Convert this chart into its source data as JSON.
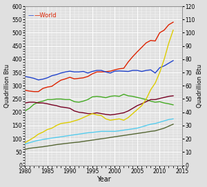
{
  "years": [
    1980,
    1981,
    1982,
    1983,
    1984,
    1985,
    1986,
    1987,
    1988,
    1989,
    1990,
    1991,
    1992,
    1993,
    1994,
    1995,
    1996,
    1997,
    1998,
    1999,
    2000,
    2001,
    2002,
    2003,
    2004,
    2005,
    2006,
    2007,
    2008,
    2009,
    2010,
    2011,
    2012,
    2013
  ],
  "world_left": [
    283,
    280,
    278,
    278,
    290,
    295,
    298,
    310,
    321,
    326,
    332,
    326,
    328,
    330,
    335,
    345,
    352,
    352,
    353,
    355,
    360,
    364,
    366,
    390,
    410,
    428,
    445,
    462,
    471,
    469,
    500,
    510,
    530,
    540
  ],
  "blue_left": [
    335,
    332,
    328,
    322,
    325,
    330,
    338,
    342,
    348,
    352,
    355,
    352,
    352,
    354,
    348,
    354,
    358,
    358,
    352,
    348,
    355,
    356,
    355,
    354,
    358,
    358,
    354,
    358,
    360,
    348,
    368,
    375,
    385,
    395
  ],
  "green_left": [
    205,
    215,
    230,
    238,
    242,
    248,
    248,
    250,
    250,
    248,
    248,
    240,
    238,
    242,
    248,
    258,
    260,
    258,
    255,
    260,
    262,
    260,
    268,
    262,
    260,
    256,
    252,
    248,
    242,
    238,
    240,
    235,
    232,
    228
  ],
  "darkred_left": [
    235,
    238,
    238,
    235,
    235,
    232,
    228,
    225,
    220,
    218,
    215,
    205,
    200,
    198,
    195,
    195,
    198,
    195,
    192,
    190,
    192,
    195,
    198,
    205,
    215,
    225,
    232,
    240,
    248,
    248,
    252,
    256,
    260,
    262
  ],
  "yellow_right": [
    17,
    19,
    21,
    23.5,
    25,
    27,
    28,
    30,
    31.5,
    32,
    32.5,
    33.5,
    34.5,
    36,
    37.5,
    39,
    38,
    37.5,
    35,
    34,
    34.5,
    35,
    34,
    36,
    39,
    42,
    45,
    50,
    57,
    62,
    70,
    80,
    92,
    102
  ],
  "lightblue_right": [
    16,
    17,
    18,
    18.8,
    19.5,
    20,
    20.5,
    21,
    21.5,
    22,
    22.5,
    23,
    23.5,
    24,
    24.5,
    24.8,
    25.2,
    25.6,
    25.6,
    25.6,
    25.6,
    26,
    26.5,
    27,
    27.5,
    28,
    29,
    30,
    31,
    31.5,
    32.5,
    33.5,
    34.5,
    35
  ],
  "darkolive_right": [
    12,
    12.8,
    13.2,
    13.6,
    14,
    14.5,
    15,
    15.6,
    16,
    16.4,
    16.8,
    17.2,
    17.5,
    18,
    18.5,
    19,
    19.5,
    20,
    20.4,
    21,
    21.5,
    22,
    22.5,
    23,
    23.5,
    24,
    24.5,
    25,
    25.6,
    26,
    27,
    28,
    29.5,
    31
  ],
  "left_ylim": [
    0,
    600
  ],
  "right_ylim": [
    0,
    120
  ],
  "xlim": [
    1980,
    2015
  ],
  "xticks": [
    1980,
    1985,
    1990,
    1995,
    2000,
    2005,
    2010,
    2015
  ],
  "left_yticks": [
    0,
    50,
    100,
    150,
    200,
    250,
    300,
    350,
    400,
    450,
    500,
    550,
    600
  ],
  "right_yticks": [
    0,
    10,
    20,
    30,
    40,
    50,
    60,
    70,
    80,
    90,
    100,
    110,
    120
  ],
  "xlabel": "Year",
  "left_ylabel": "Quadrillion Btu",
  "right_ylabel": "Quadrillion Btu",
  "legend_blue": "—",
  "legend_world": "—World",
  "bg_color": "#e0e0e0",
  "grid_color": "#ffffff",
  "colors": {
    "red": "#dd2200",
    "blue": "#2244cc",
    "green": "#44aa22",
    "darkred": "#770022",
    "yellow": "#ddcc00",
    "lightblue": "#55ccee",
    "darkolive": "#556633"
  }
}
